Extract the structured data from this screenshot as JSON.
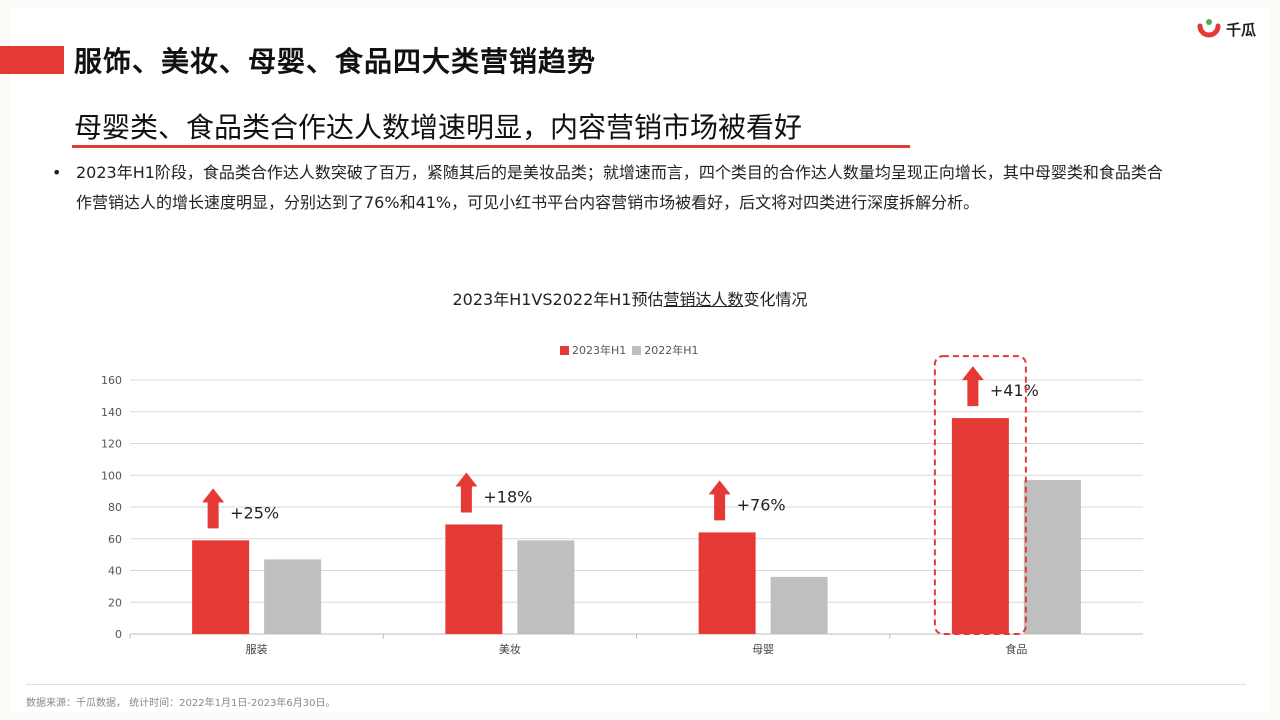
{
  "page": {
    "title": "服饰、美妆、母婴、食品四大类营销趋势",
    "logo_text": "千瓜",
    "subtitle": "母婴类、食品类合作达人数增速明显，内容营销市场被看好",
    "bullet_text": "2023年H1阶段，食品类合作达人数突破了百万，紧随其后的是美妆品类；就增速而言，四个类目的合作达人数量均呈现正向增长，其中母婴类和食品类合作营销达人的增长速度明显，分别达到了76%和41%，可见小红书平台内容营销市场被看好，后文将对四类进行深度拆解分析。",
    "footer": "数据来源：千瓜数据， 统计时间：2022年1月1日-2023年6月30日。"
  },
  "chart_data": {
    "type": "bar",
    "title_prefix": "2023年H1VS2022年H1预估",
    "title_underlined": "营销达人数",
    "title_suffix": "变化情况",
    "categories": [
      "服装",
      "美妆",
      "母婴",
      "食品"
    ],
    "series": [
      {
        "name": "2023年H1",
        "color": "#e53935",
        "values": [
          59,
          69,
          64,
          136
        ]
      },
      {
        "name": "2022年H1",
        "color": "#bfbfbf",
        "values": [
          47,
          59,
          36,
          97
        ]
      }
    ],
    "growth_labels": [
      "+25%",
      "+18%",
      "+76%",
      "+41%"
    ],
    "highlight_category": "食品",
    "ylim": [
      0,
      160
    ],
    "yticks": [
      0,
      20,
      40,
      60,
      80,
      100,
      120,
      140,
      160
    ],
    "grid": true,
    "legend_position": "top-center"
  }
}
